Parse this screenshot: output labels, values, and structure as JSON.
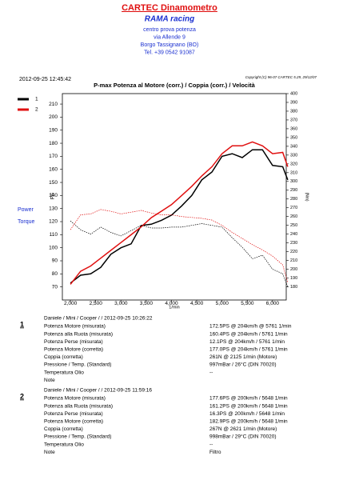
{
  "header": {
    "title": "CARTEC Dinamometro",
    "company": "RAMA racing",
    "lines": [
      "centro prova potenza",
      "via Allende 9",
      "Borgo Tassignano (BO)",
      "Tel. +39 0542 91087"
    ],
    "datetime": "2012-09-25 12:45:42",
    "copyright": "Copyright (C) 96-07 CARTEC 5.29, 29/12/07"
  },
  "chart_data": {
    "type": "line",
    "title": "P-max Potenza al Motore (corr.) / Coppia (corr.) / Velocità",
    "x_label": "1/min",
    "y_label": "PS",
    "y2_label": "(Nm)",
    "legend": [
      {
        "label": "1",
        "color": "#000000"
      },
      {
        "label": "2",
        "color": "#e01010"
      }
    ],
    "side_labels": [
      "Power",
      "Torque"
    ],
    "x": [
      2000,
      2200,
      2400,
      2600,
      2800,
      3000,
      3200,
      3400,
      3600,
      3800,
      4000,
      4200,
      4400,
      4600,
      4800,
      5000,
      5200,
      5400,
      5600,
      5800,
      6000,
      6200,
      6300
    ],
    "series": [
      {
        "color": "#000000",
        "dash": false,
        "values": [
          73,
          79,
          80,
          85,
          95,
          100,
          103,
          117,
          118,
          121,
          125,
          132,
          140,
          152,
          158,
          170,
          172,
          169,
          175,
          175,
          163,
          162,
          152
        ]
      },
      {
        "color": "#e01010",
        "dash": false,
        "values": [
          72,
          82,
          86,
          92,
          98,
          104,
          110,
          116,
          123,
          128,
          133,
          140,
          147,
          155,
          162,
          172,
          178,
          178,
          181,
          178,
          172,
          173,
          162
        ]
      },
      {
        "color": "#000000",
        "dash": true,
        "axis": "y2",
        "values": [
          255,
          245,
          240,
          248,
          242,
          238,
          244,
          250,
          247,
          247,
          248,
          248,
          250,
          252,
          250,
          248,
          236,
          225,
          212,
          216,
          200,
          195,
          180
        ]
      },
      {
        "color": "#e01010",
        "dash": true,
        "axis": "y2",
        "values": [
          245,
          262,
          263,
          268,
          266,
          263,
          265,
          267,
          264,
          262,
          262,
          260,
          259,
          258,
          256,
          250,
          242,
          235,
          228,
          222,
          215,
          205,
          185
        ]
      }
    ],
    "xlim": [
      1840,
      6270
    ],
    "xticks": [
      {
        "value": 2000,
        "label": "2,000"
      },
      {
        "value": 2500,
        "label": "2,500"
      },
      {
        "value": 3000,
        "label": "3,000"
      },
      {
        "value": 3500,
        "label": "3,500"
      },
      {
        "value": 4000,
        "label": "4,000"
      },
      {
        "value": 4500,
        "label": "4,500"
      },
      {
        "value": 5000,
        "label": "5,000"
      },
      {
        "value": 5500,
        "label": "5,500"
      },
      {
        "value": 6000,
        "label": "6,000"
      }
    ],
    "ylim": [
      60,
      218
    ],
    "yticks": [
      70,
      80,
      90,
      100,
      110,
      120,
      130,
      140,
      150,
      160,
      170,
      180,
      190,
      200,
      210
    ],
    "y2lim": [
      165,
      400
    ],
    "y2ticks": [
      180,
      190,
      200,
      210,
      220,
      230,
      240,
      250,
      260,
      270,
      280,
      290,
      300,
      310,
      320,
      330,
      340,
      350,
      360,
      370,
      380,
      390,
      400
    ]
  },
  "runs": [
    {
      "number": "1",
      "header": "Daniele / Mini / Cooper /  / 2012-09-25 10:26:22",
      "rows": [
        [
          "Potenza Motore (misurata)",
          "172.5PS @ 204km/h @ 5761 1/min"
        ],
        [
          "Potenza alla Ruota (misurata)",
          "160.4PS @ 204km/h / 5761 1/min"
        ],
        [
          "Potenza Perse (misurata)",
          "12.1PS @ 204km/h / 5761 1/min"
        ],
        [
          "Potenza Motore (corretta)",
          "177.0PS @ 204km/h / 5761 1/min"
        ],
        [
          "Coppia (corretta)",
          "261N @ 2125 1/min (Motore)"
        ],
        [
          "Pressione / Temp. (Standard)",
          "997mBar / 26°C   (DIN 70020)"
        ],
        [
          "Temperatura Olio",
          "--"
        ],
        [
          "Note"
        ]
      ]
    },
    {
      "number": "2",
      "header": "Daniele / Mini / Cooper /  / 2012-09-25 11:59:16",
      "rows": [
        [
          "Potenza Motore (misurata)",
          "177.6PS @ 200km/h / 5648 1/min"
        ],
        [
          "Potenza alla Ruota (misurata)",
          "161.2PS @ 200km/h / 5648 1/min"
        ],
        [
          "Potenza Perse (misurata)",
          "16.3PS @ 200km/h / 5648 1/min"
        ],
        [
          "Potenza Motore (corretta)",
          "182.9PS @ 200km/h / 5648 1/min"
        ],
        [
          "Coppia (corretta)",
          "267N @ 2621 1/min (Motore)"
        ],
        [
          "Pressione / Temp. (Standard)",
          "998mBar / 29°C   (DIN 70020)"
        ],
        [
          "Temperatura Olio",
          "--"
        ],
        [
          "Note",
          "Filtro"
        ]
      ]
    }
  ]
}
